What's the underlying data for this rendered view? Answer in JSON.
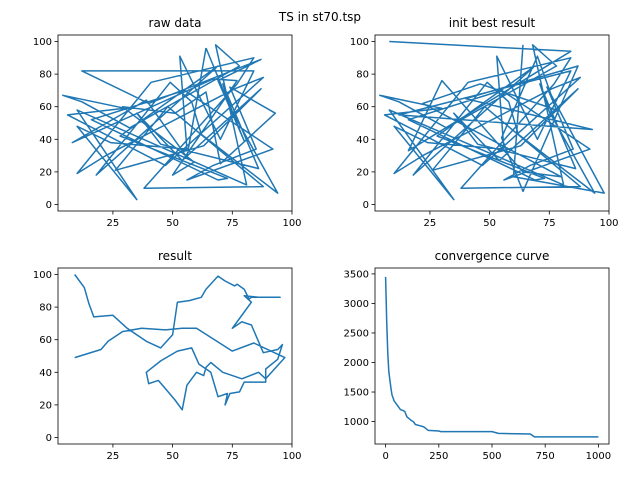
{
  "figure": {
    "title": "TS in st70.tsp",
    "line_color": "#1f77b4"
  },
  "chart_data": [
    {
      "type": "line",
      "title": "raw data",
      "xlim": [
        2,
        100
      ],
      "ylim": [
        -4,
        104
      ],
      "xticks": [
        25,
        50,
        75,
        100
      ],
      "yticks": [
        0,
        20,
        40,
        60,
        80,
        100
      ],
      "grid": false,
      "series": [
        {
          "x": [
            64,
            80,
            69,
            87,
            40,
            12,
            84,
            70,
            53,
            56,
            24,
            10,
            35,
            10,
            81,
            68,
            78,
            32,
            12,
            4,
            30,
            6,
            47,
            88,
            76,
            22,
            10,
            41,
            84,
            77,
            38,
            88,
            48,
            26,
            63,
            87,
            54,
            35,
            45,
            86,
            71,
            75,
            94,
            62,
            58,
            49,
            18,
            69,
            28,
            73,
            69,
            16,
            55,
            92,
            56,
            67,
            85,
            74,
            93,
            70,
            64,
            51,
            29,
            59,
            50,
            77,
            67,
            8,
            39,
            56,
            64
          ],
          "y": [
            96,
            39,
            76,
            89,
            62,
            82,
            82,
            40,
            91,
            34,
            38,
            48,
            3,
            58,
            12,
            98,
            85,
            47,
            63,
            67,
            59,
            55,
            24,
            78,
            71,
            30,
            19,
            75,
            90,
            74,
            10,
            11,
            60,
            21,
            36,
            71,
            27,
            56,
            37,
            22,
            74,
            57,
            7,
            43,
            63,
            75,
            18,
            85,
            42,
            16,
            15,
            52,
            70,
            34,
            15,
            24,
            34,
            72,
            56,
            25,
            69,
            56,
            60,
            26,
            18,
            76,
            77,
            38,
            64,
            29,
            96
          ]
        }
      ]
    },
    {
      "type": "line",
      "title": "init best result",
      "xlim": [
        2,
        100
      ],
      "ylim": [
        -4,
        104
      ],
      "xticks": [
        25,
        50,
        75,
        100
      ],
      "yticks": [
        0,
        20,
        40,
        60,
        80,
        100
      ],
      "grid": false,
      "series": [
        {
          "x": [
            8,
            84,
            16,
            30,
            64,
            80,
            22,
            46,
            78,
            70,
            55,
            64,
            87,
            40,
            93,
            12,
            84,
            70,
            53,
            56,
            24,
            10,
            35,
            8,
            81,
            68,
            78,
            32,
            12,
            4,
            30,
            6,
            47,
            88,
            76,
            22,
            10,
            41,
            84,
            77,
            38,
            88,
            48,
            26,
            63,
            87,
            54,
            35,
            45,
            86,
            71,
            75,
            94,
            62,
            58,
            49,
            18,
            69,
            28,
            73,
            69,
            16,
            55,
            92,
            56,
            67,
            85,
            74,
            98,
            60,
            64
          ],
          "y": [
            100,
            94,
            33,
            76,
            20,
            17,
            62,
            74,
            58,
            91,
            41,
            8,
            85,
            65,
            46,
            55,
            82,
            40,
            91,
            34,
            38,
            48,
            3,
            58,
            12,
            98,
            85,
            47,
            63,
            67,
            59,
            55,
            24,
            78,
            71,
            30,
            19,
            75,
            90,
            74,
            10,
            11,
            60,
            21,
            36,
            71,
            27,
            56,
            37,
            22,
            74,
            57,
            7,
            43,
            63,
            75,
            18,
            85,
            42,
            16,
            15,
            52,
            70,
            34,
            15,
            24,
            34,
            72,
            7,
            17,
            98
          ]
        }
      ]
    },
    {
      "type": "line",
      "title": "result",
      "xlim": [
        2,
        100
      ],
      "ylim": [
        -4,
        104
      ],
      "xticks": [
        25,
        50,
        75,
        100
      ],
      "yticks": [
        0,
        20,
        40,
        60,
        80,
        100
      ],
      "grid": false,
      "series": [
        {
          "x": [
            9,
            13,
            15,
            17,
            25,
            31,
            39,
            45,
            50,
            52,
            57,
            62,
            64,
            69,
            72,
            76,
            77,
            80,
            82,
            83,
            86,
            95,
            86,
            80,
            83,
            78,
            75,
            79,
            83,
            88,
            94,
            96,
            94,
            89,
            89,
            80,
            78,
            74,
            72,
            73,
            69,
            66,
            61,
            58,
            52,
            45,
            39,
            40,
            44,
            47,
            51,
            54,
            56,
            60,
            63,
            64,
            66,
            71,
            79,
            86,
            89,
            97,
            84,
            75,
            60,
            54,
            47,
            37,
            29,
            23,
            20,
            9
          ],
          "y": [
            100,
            92,
            82,
            74,
            75,
            67,
            59,
            55,
            63,
            83,
            84,
            86,
            91,
            99,
            96,
            93,
            94,
            91,
            85,
            86,
            86,
            86,
            86,
            87,
            83,
            73,
            67,
            71,
            69,
            52,
            54,
            57,
            48,
            42,
            34,
            34,
            28,
            27,
            20,
            27,
            25,
            40,
            45,
            55,
            53,
            47,
            40,
            33,
            35,
            30,
            23,
            17,
            32,
            40,
            38,
            43,
            46,
            40,
            36,
            40,
            36,
            49,
            58,
            53,
            67,
            67,
            66,
            67,
            65,
            59,
            54,
            49
          ]
        }
      ]
    },
    {
      "type": "line",
      "title": "convergence curve",
      "xlim": [
        -50,
        1050
      ],
      "ylim": [
        620,
        3600
      ],
      "xticks": [
        0,
        250,
        500,
        750,
        1000
      ],
      "yticks": [
        1000,
        1500,
        2000,
        2500,
        3000,
        3500
      ],
      "grid": false,
      "series": [
        {
          "x": [
            0,
            5,
            10,
            15,
            20,
            25,
            30,
            35,
            40,
            50,
            60,
            70,
            80,
            90,
            100,
            110,
            120,
            130,
            140,
            160,
            180,
            200,
            250,
            260,
            500,
            530,
            680,
            700,
            1000
          ],
          "y": [
            3450,
            2700,
            2150,
            1850,
            1700,
            1560,
            1450,
            1400,
            1350,
            1300,
            1250,
            1200,
            1190,
            1170,
            1080,
            1050,
            1020,
            1000,
            950,
            930,
            910,
            850,
            840,
            830,
            830,
            800,
            790,
            740,
            740
          ]
        }
      ]
    }
  ]
}
